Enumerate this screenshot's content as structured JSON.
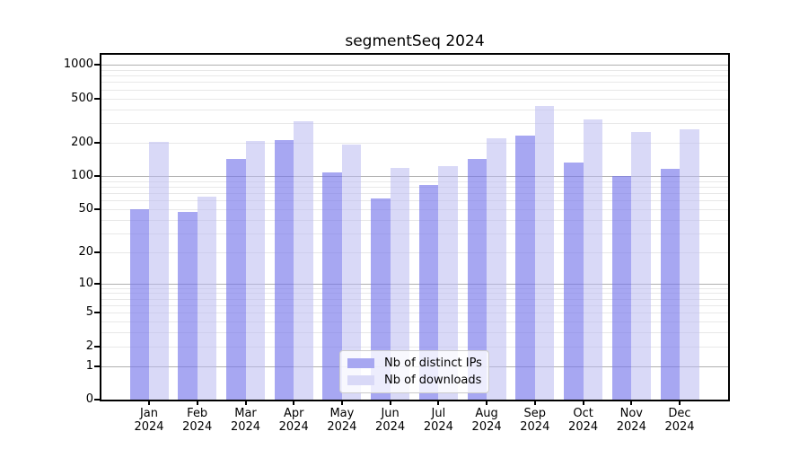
{
  "title": "segmentSeq 2024",
  "colors": {
    "distinct_ips_bar": "#a7a7f1",
    "downloads_bar": "#d9d9f7",
    "grid_major": "#b0b0b0",
    "grid_minor": "#e8e8e8",
    "axis_frame": "#000000",
    "legend_border": "#cccccc"
  },
  "legend": {
    "items": [
      {
        "label": "Nb of distinct IPs",
        "key": "distinct_ips"
      },
      {
        "label": "Nb of downloads",
        "key": "downloads"
      }
    ],
    "position": "lower center"
  },
  "chart_data": {
    "type": "bar",
    "title": "segmentSeq 2024",
    "categories": [
      "Jan 2024",
      "Feb 2024",
      "Mar 2024",
      "Apr 2024",
      "May 2024",
      "Jun 2024",
      "Jul 2024",
      "Aug 2024",
      "Sep 2024",
      "Oct 2024",
      "Nov 2024",
      "Dec 2024"
    ],
    "series": [
      {
        "name": "Nb of distinct IPs",
        "values": [
          50,
          47,
          142,
          210,
          108,
          63,
          83,
          143,
          232,
          132,
          100,
          116
        ]
      },
      {
        "name": "Nb of downloads",
        "values": [
          204,
          65,
          206,
          313,
          192,
          119,
          124,
          220,
          428,
          325,
          250,
          266
        ]
      }
    ],
    "xlabel": "",
    "ylabel": "",
    "yscale": "log1p",
    "yticks": [
      0,
      1,
      2,
      5,
      10,
      20,
      50,
      100,
      200,
      500,
      1000
    ],
    "ylim": [
      0,
      1234
    ],
    "grid": "on",
    "grid_major_at": [
      1,
      10,
      100,
      1000
    ],
    "legend_position": "lower center"
  }
}
